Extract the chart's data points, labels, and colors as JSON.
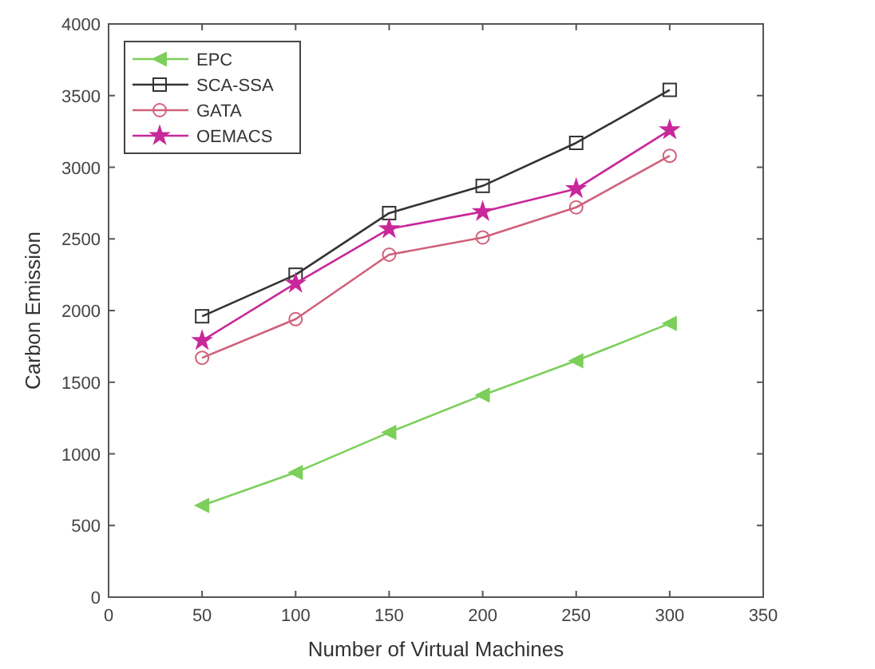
{
  "chart_data": {
    "type": "line",
    "xlabel": "Number of Virtual Machines",
    "ylabel": "Carbon Emission",
    "x": [
      50,
      100,
      150,
      200,
      250,
      300
    ],
    "xlim": [
      0,
      350
    ],
    "xticks": [
      0,
      50,
      100,
      150,
      200,
      250,
      300,
      350
    ],
    "ylim": [
      0,
      4000
    ],
    "yticks": [
      0,
      500,
      1000,
      1500,
      2000,
      2500,
      3000,
      3500,
      4000
    ],
    "grid": false,
    "legend": "top left",
    "series": [
      {
        "name": "EPC",
        "color": "#7ccf5a",
        "marker": "triangle",
        "values": [
          640,
          870,
          1150,
          1410,
          1650,
          1910
        ]
      },
      {
        "name": "SCA-SSA",
        "color": "#333333",
        "marker": "square",
        "values": [
          1960,
          2250,
          2680,
          2870,
          3170,
          3540
        ]
      },
      {
        "name": "GATA",
        "color": "#d0607a",
        "marker": "circle",
        "values": [
          1670,
          1940,
          2390,
          2510,
          2720,
          3080
        ]
      },
      {
        "name": "OEMACS",
        "color": "#c8289a",
        "marker": "star",
        "values": [
          1790,
          2190,
          2570,
          2690,
          2850,
          3260
        ]
      }
    ]
  }
}
